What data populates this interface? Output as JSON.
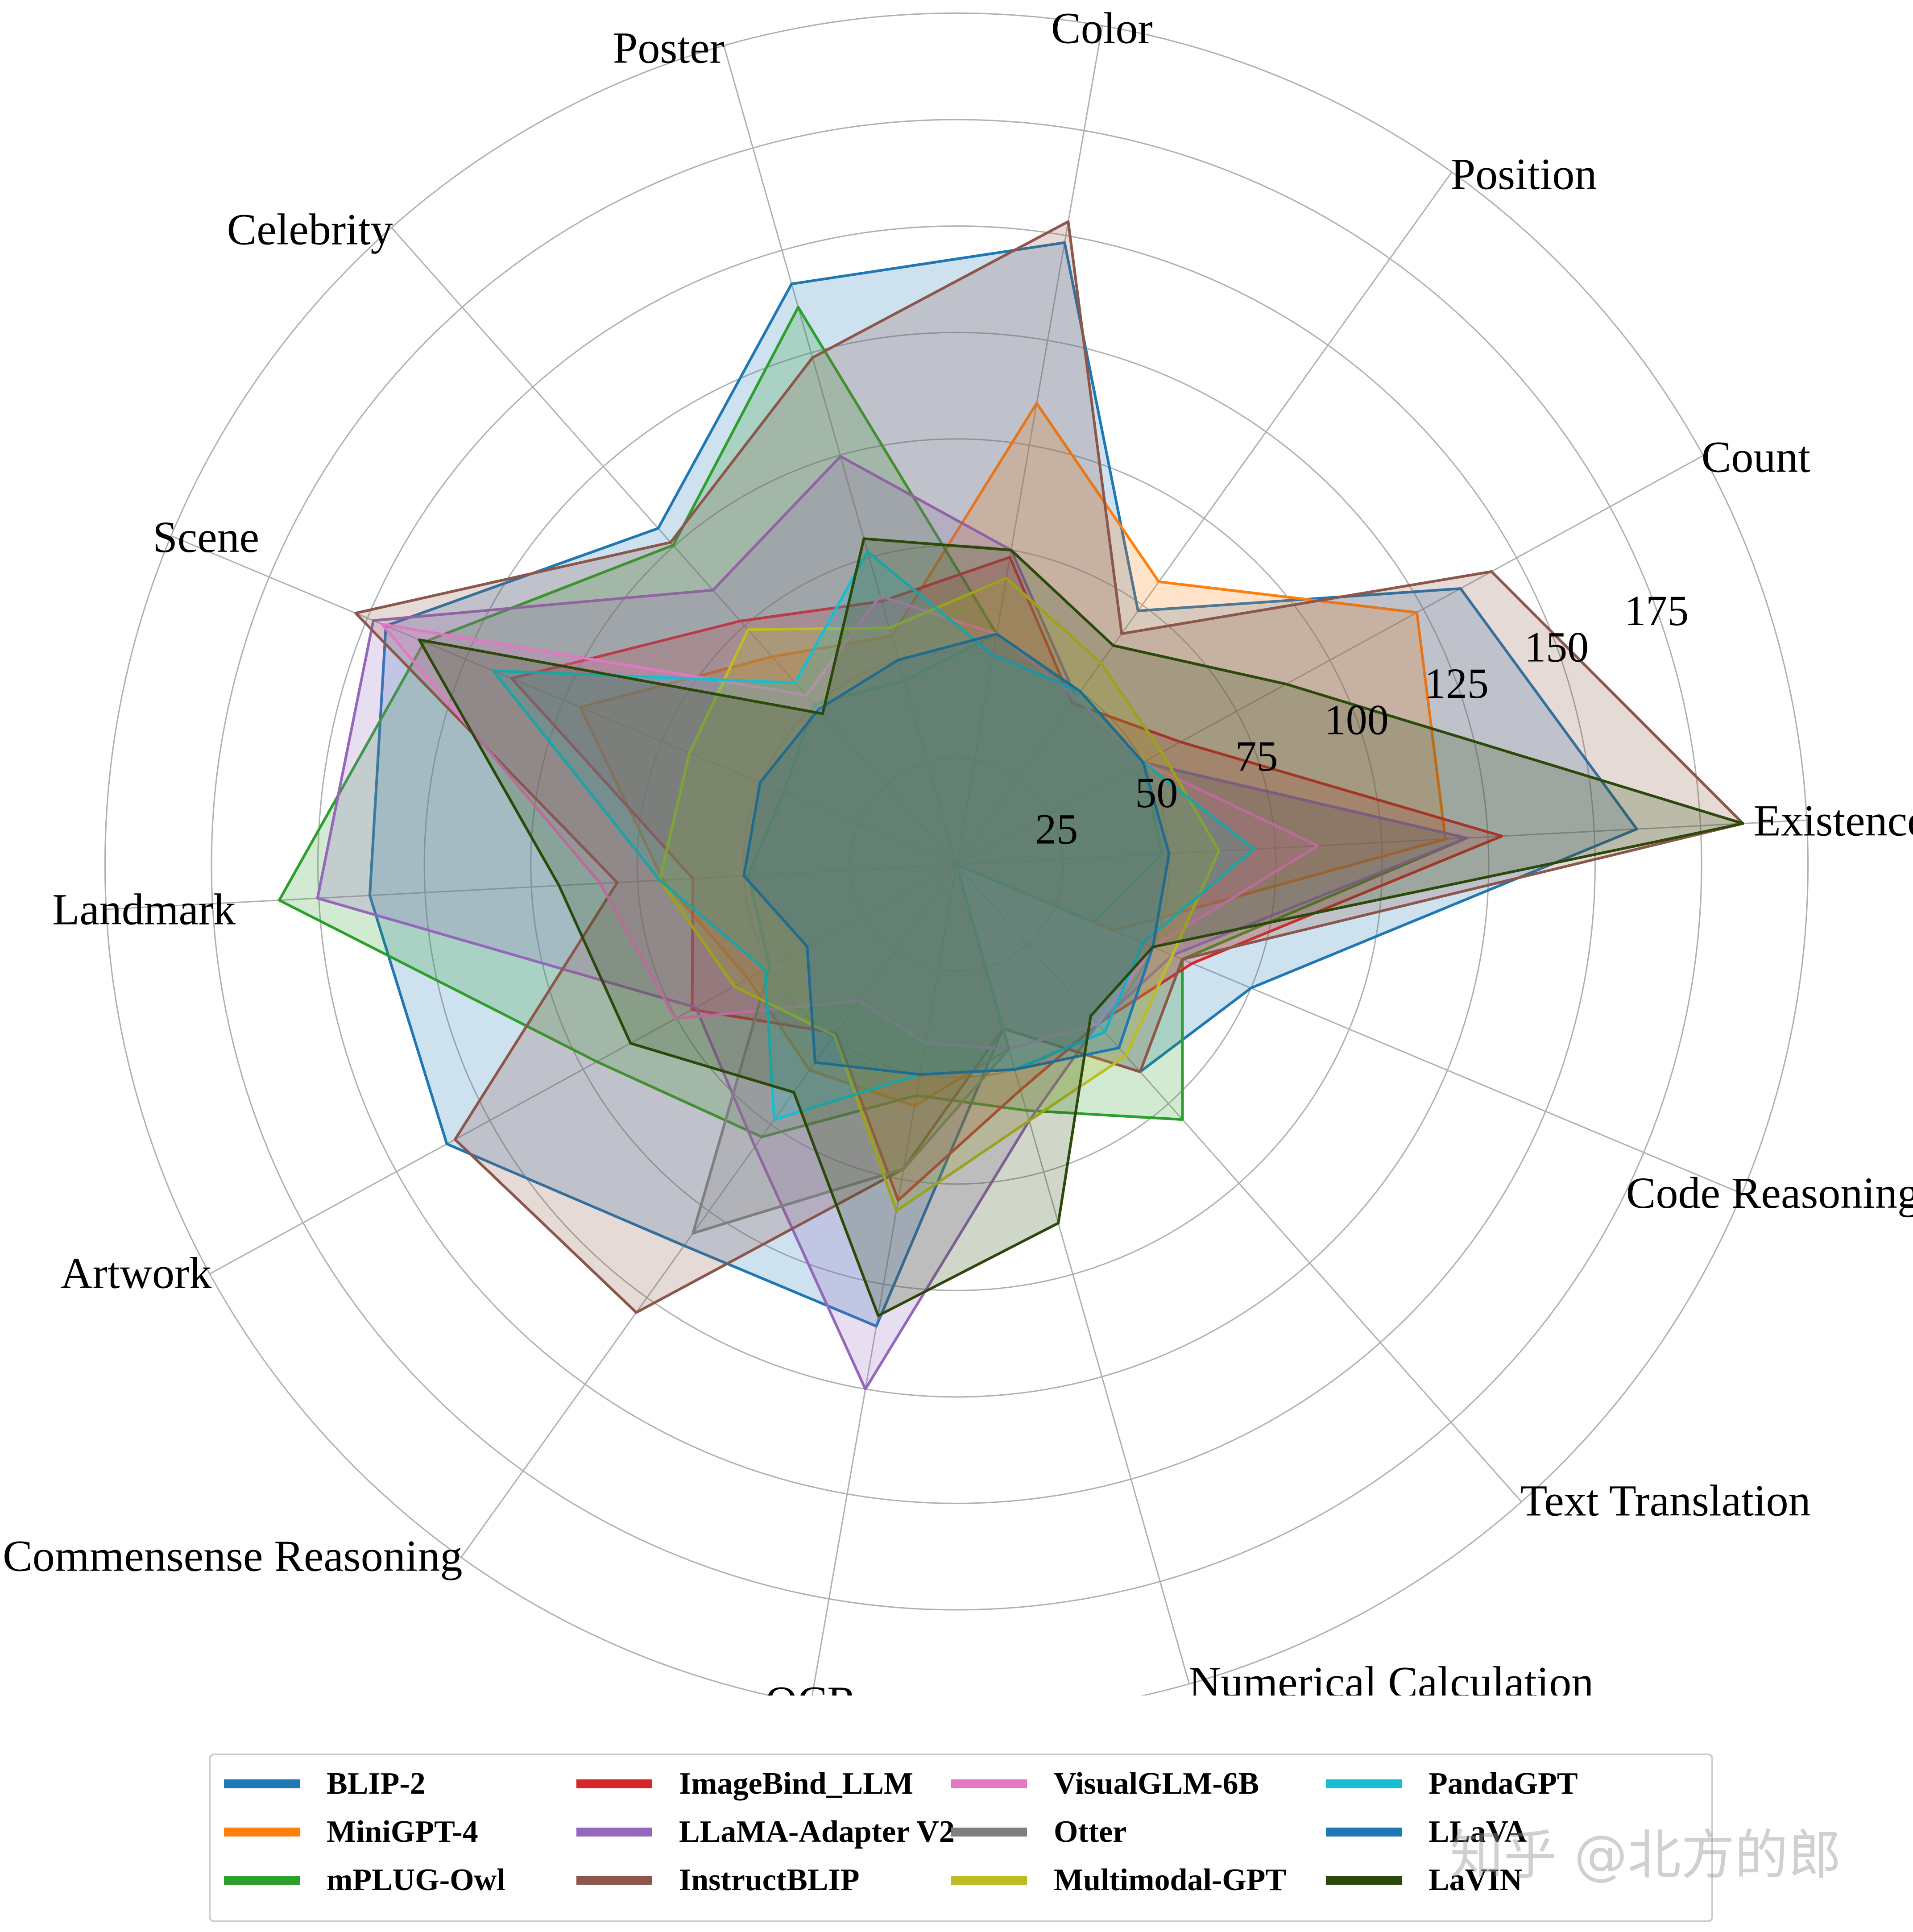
{
  "chart_data": {
    "type": "radar",
    "title": "",
    "categories": [
      "Existence",
      "Count",
      "Position",
      "Color",
      "Poster",
      "Celebrity",
      "Scene",
      "Landmark",
      "Artwork",
      "Commensense Reasoning",
      "OCR",
      "Numerical Calculation",
      "Text Translation",
      "Code Reasoning"
    ],
    "r_ticks": [
      25,
      50,
      75,
      100,
      125,
      150,
      175
    ],
    "r_max": 175,
    "grid": true,
    "legend_position": "bottom",
    "series": [
      {
        "name": "BLIP-2",
        "color": "#1f77b4",
        "values": [
          160,
          135.0,
          73.3,
          148.3,
          141.8,
          105.6,
          145.3,
          138.0,
          136.5,
          110.0,
          110.0,
          40.0,
          65.0,
          75.0
        ]
      },
      {
        "name": "MiniGPT-4",
        "color": "#ff7f0e",
        "values": [
          115.0,
          123.3,
          81.7,
          110.0,
          55.8,
          65.3,
          95.8,
          69.0,
          55.8,
          59.3,
          57.5,
          45.0,
          0.0,
          40.0
        ]
      },
      {
        "name": "mPLUG-Owl",
        "color": "#2ca02c",
        "values": [
          120.0,
          50.0,
          50.0,
          55.0,
          136.1,
          100.3,
          135.5,
          159.3,
          96.3,
          78.6,
          55.0,
          60.0,
          80.0,
          57.5
        ]
      },
      {
        "name": "ImageBind_LLM",
        "color": "#d62728",
        "values": [
          128.3,
          60.0,
          46.7,
          73.3,
          64.3,
          76.5,
          113.3,
          62.0,
          70.8,
          48.6,
          80.0,
          55.0,
          50.0,
          60.0
        ]
      },
      {
        "name": "LLaMA-Adapter V2",
        "color": "#9467bd",
        "values": [
          120.0,
          50.0,
          48.3,
          75.0,
          99.7,
          86.2,
          148.5,
          150.3,
          69.8,
          81.4,
          125.0,
          62.5,
          50.0,
          55.0
        ]
      },
      {
        "name": "InstructBLIP",
        "color": "#8c564b",
        "values": [
          185.0,
          143.3,
          66.7,
          153.3,
          123.8,
          101.2,
          153.0,
          79.8,
          134.3,
          129.3,
          72.5,
          40.0,
          65.0,
          57.5
        ]
      },
      {
        "name": "VisualGLM-6B",
        "color": "#e377c2",
        "values": [
          85.0,
          50.0,
          48.3,
          55.0,
          65.6,
          53.2,
          146.3,
          83.8,
          75.3,
          39.3,
          42.5,
          45.0,
          50.0,
          50.0
        ]
      },
      {
        "name": "Otter",
        "color": "#7f7f7f",
        "values": [
          48.3,
          50.0,
          50.0,
          55.0,
          44.9,
          50.3,
          44.0,
          49.0,
          50.0,
          106.4,
          72.5,
          45.0,
          0.0,
          35.0
        ]
      },
      {
        "name": "Multimodal-GPT",
        "color": "#bcbd22",
        "values": [
          61.7,
          55.0,
          58.3,
          68.3,
          57.8,
          73.8,
          68.0,
          69.8,
          59.5,
          49.3,
          82.5,
          62.5,
          60.0,
          55.0
        ]
      },
      {
        "name": "PandaGPT",
        "color": "#17becf",
        "values": [
          70.0,
          50.0,
          50.0,
          50.0,
          76.5,
          57.1,
          118.0,
          69.8,
          51.3,
          73.6,
          50.0,
          50.0,
          52.5,
          47.5
        ]
      },
      {
        "name": "LLaVA",
        "color": "#1f77b4",
        "values": [
          50.0,
          50.0,
          50.0,
          55.0,
          50.0,
          48.8,
          50.0,
          50.0,
          40.0,
          57.1,
          50.0,
          50.0,
          57.5,
          50.0
        ]
      },
      {
        "name": "LaVIN",
        "color": "#2b4a0a",
        "values": [
          185.0,
          88.3,
          63.3,
          75.0,
          79.6,
          47.4,
          136.8,
          93.5,
          87.3,
          65.7,
          107.5,
          87.5,
          47.5,
          50.0
        ]
      }
    ]
  },
  "watermark": "知乎 @北方的郎"
}
